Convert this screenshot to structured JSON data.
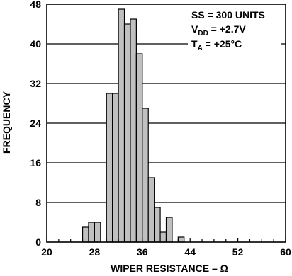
{
  "chart_data": {
    "type": "bar",
    "xlabel": "WIPER RESISTANCE – Ω",
    "ylabel": "FREQUENCY",
    "x_ticks": [
      20,
      28,
      36,
      44,
      52,
      60
    ],
    "y_ticks": [
      0,
      8,
      16,
      24,
      32,
      40,
      48
    ],
    "xlim": [
      20,
      60
    ],
    "ylim": [
      0,
      48
    ],
    "bin_width": 1,
    "bin_starts": [
      20,
      21,
      22,
      23,
      24,
      25,
      26,
      27,
      28,
      29,
      30,
      31,
      32,
      33,
      34,
      35,
      36,
      37,
      38,
      39,
      40,
      41,
      42,
      43,
      44,
      45,
      46,
      47,
      48,
      49,
      50,
      51,
      52,
      53,
      54,
      55,
      56,
      57,
      58,
      59
    ],
    "values": [
      0,
      0,
      0,
      0,
      0,
      0,
      3,
      4,
      4,
      0,
      30,
      30,
      47,
      44,
      45,
      38,
      27,
      13,
      7,
      2,
      5,
      0,
      1,
      0,
      0,
      0,
      0,
      0,
      0,
      0,
      0,
      0,
      0,
      0,
      0,
      0,
      0,
      0,
      0,
      0
    ],
    "bar_color": "#c0c0c0",
    "grid": "horizontal",
    "annotations": [
      "SS = 300 UNITS",
      "V",
      "DD",
      " = +2.7V",
      "T",
      "A",
      " = +25°C"
    ]
  }
}
